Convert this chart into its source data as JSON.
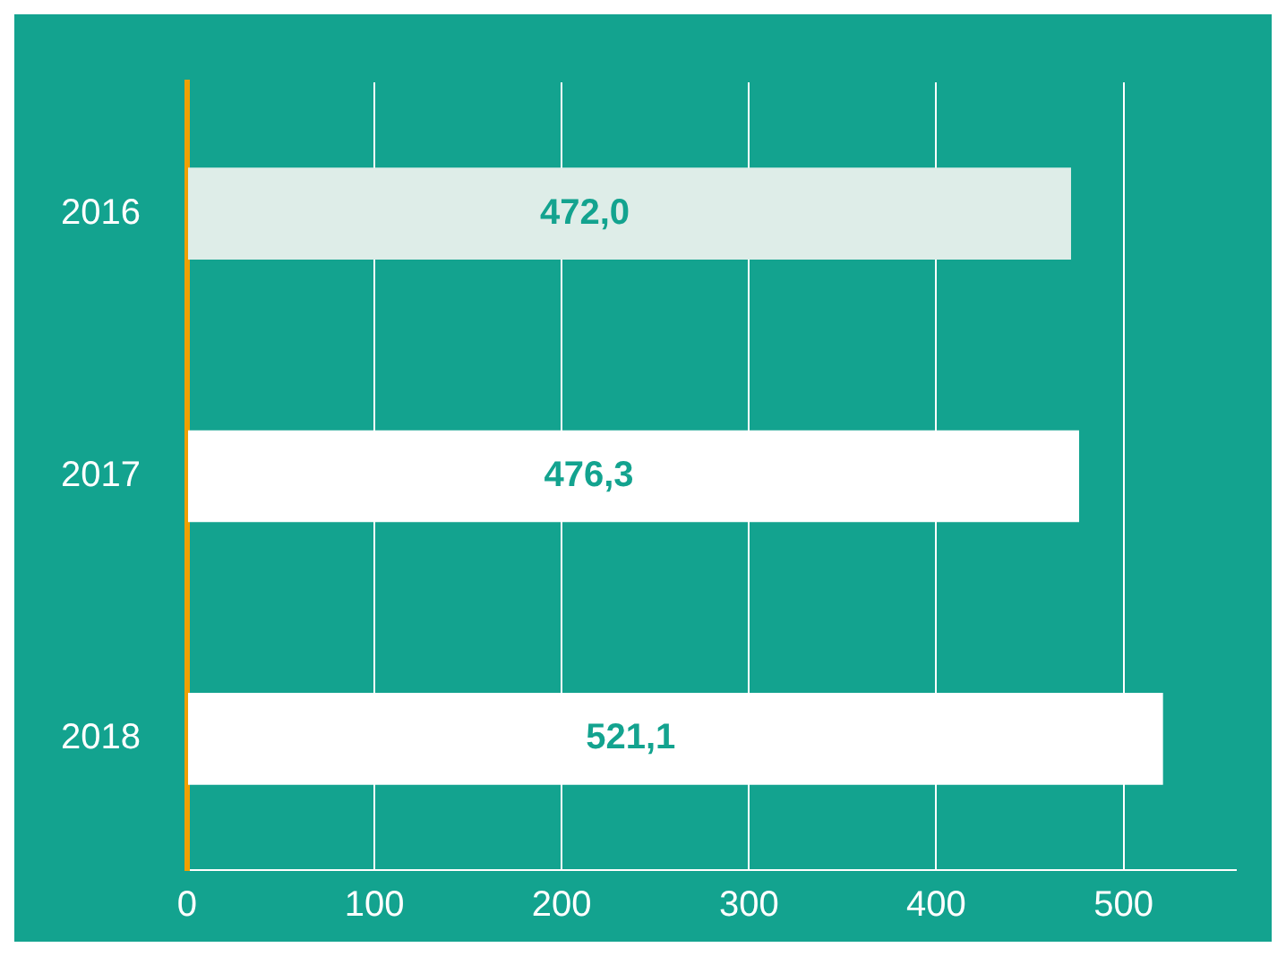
{
  "chart_data": {
    "type": "bar",
    "orientation": "horizontal",
    "categories": [
      "2016",
      "2017",
      "2018"
    ],
    "values": [
      472.0,
      476.3,
      521.1
    ],
    "colors": [
      "#deede8",
      "#ffffff",
      "#ffffff"
    ],
    "value_labels": [
      "472,0",
      "476,3",
      "521,1"
    ],
    "xlim": [
      0,
      560
    ],
    "xticks": [
      0,
      100,
      200,
      300,
      400,
      500
    ],
    "grid": "x",
    "legend": false
  }
}
